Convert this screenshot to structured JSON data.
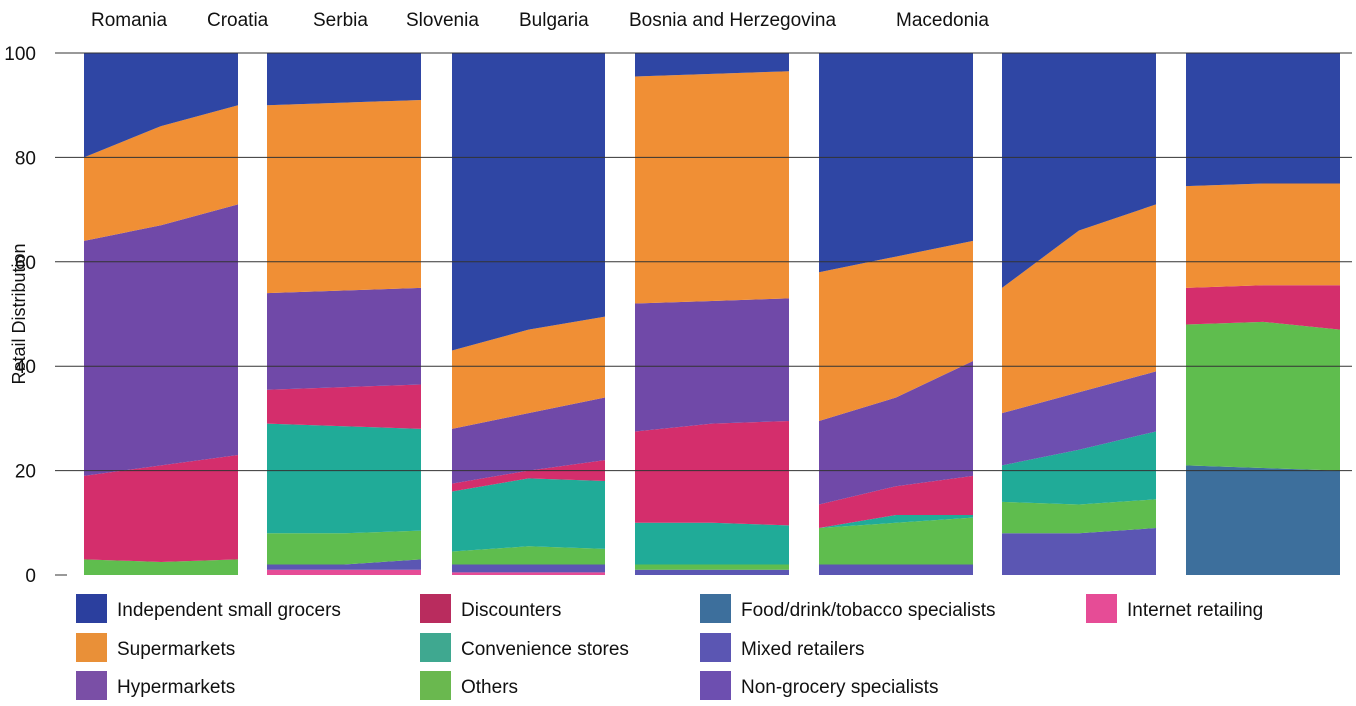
{
  "chart_data": {
    "type": "area",
    "ylabel": "Retail Distribution",
    "ylim": [
      0,
      100
    ],
    "yticks": [
      0,
      20,
      40,
      60,
      80,
      100
    ],
    "grid": true,
    "legend_position": "bottom",
    "channels": [
      {
        "name": "Food/drink/tobacco specialists",
        "color": "#3d6f9c"
      },
      {
        "name": "Internet retailing",
        "color": "#e64c96"
      },
      {
        "name": "Mixed retailers",
        "color": "#5b56b3"
      },
      {
        "name": "Others",
        "color": "#5fbd4e"
      },
      {
        "name": "Convenience stores",
        "color": "#20ab98"
      },
      {
        "name": "Discounters",
        "color": "#d42e6c"
      },
      {
        "name": "Non-grocery specialists",
        "color": "#6d4fb0"
      },
      {
        "name": "Hypermarkets",
        "color": "#7049a8"
      },
      {
        "name": "Supermarkets",
        "color": "#f08f35"
      },
      {
        "name": "Independent small grocers",
        "color": "#2f46a4"
      }
    ],
    "countries": [
      {
        "name": "Romania",
        "boundaries": {
          "Food/drink/tobacco specialists": [
            0,
            0,
            0
          ],
          "Internet retailing": [
            0,
            0,
            0
          ],
          "Mixed retailers": [
            0,
            0,
            0
          ],
          "Others": [
            3,
            2.5,
            3
          ],
          "Convenience stores": [
            3,
            2.5,
            3
          ],
          "Discounters": [
            19,
            21,
            23
          ],
          "Non-grocery specialists": [
            19,
            21,
            23
          ],
          "Hypermarkets": [
            64,
            67,
            71
          ],
          "Supermarkets": [
            80,
            86,
            90
          ],
          "Independent small grocers": [
            100,
            100,
            100
          ]
        }
      },
      {
        "name": "Croatia",
        "boundaries": {
          "Food/drink/tobacco specialists": [
            0,
            0,
            0
          ],
          "Internet retailing": [
            1,
            1,
            1
          ],
          "Mixed retailers": [
            2,
            2,
            3
          ],
          "Others": [
            8,
            8,
            8.5
          ],
          "Convenience stores": [
            29,
            28.5,
            28
          ],
          "Discounters": [
            35.5,
            36,
            36.5
          ],
          "Non-grocery specialists": [
            35.5,
            36,
            36.5
          ],
          "Hypermarkets": [
            54,
            54.5,
            55
          ],
          "Supermarkets": [
            90,
            90.5,
            91
          ],
          "Independent small grocers": [
            100,
            100,
            100
          ]
        }
      },
      {
        "name": "Serbia",
        "boundaries": {
          "Food/drink/tobacco specialists": [
            0,
            0,
            0
          ],
          "Internet retailing": [
            0.5,
            0.5,
            0.5
          ],
          "Mixed retailers": [
            2,
            2,
            2
          ],
          "Others": [
            4.5,
            5.5,
            5
          ],
          "Convenience stores": [
            16,
            18.5,
            18
          ],
          "Discounters": [
            17.5,
            20,
            22
          ],
          "Non-grocery specialists": [
            17.5,
            20,
            22
          ],
          "Hypermarkets": [
            28,
            31,
            34
          ],
          "Supermarkets": [
            43,
            47,
            49.5
          ],
          "Independent small grocers": [
            100,
            100,
            100
          ]
        }
      },
      {
        "name": "Slovenia",
        "boundaries": {
          "Food/drink/tobacco specialists": [
            0,
            0,
            0
          ],
          "Internet retailing": [
            0,
            0,
            0
          ],
          "Mixed retailers": [
            1,
            1,
            1
          ],
          "Others": [
            2,
            2,
            2
          ],
          "Convenience stores": [
            10,
            10,
            9.5
          ],
          "Discounters": [
            27.5,
            29,
            29.5
          ],
          "Non-grocery specialists": [
            27.5,
            29,
            29.5
          ],
          "Hypermarkets": [
            52,
            52.5,
            53
          ],
          "Supermarkets": [
            95.5,
            96,
            96.5
          ],
          "Independent small grocers": [
            100,
            100,
            100
          ]
        }
      },
      {
        "name": "Bulgaria",
        "boundaries": {
          "Food/drink/tobacco specialists": [
            0,
            0,
            0
          ],
          "Internet retailing": [
            0,
            0,
            0
          ],
          "Mixed retailers": [
            2,
            2,
            2
          ],
          "Others": [
            9,
            10,
            11
          ],
          "Convenience stores": [
            9,
            11.5,
            11.5
          ],
          "Discounters": [
            13.5,
            17,
            19
          ],
          "Non-grocery specialists": [
            13.5,
            17,
            19
          ],
          "Hypermarkets": [
            29.5,
            34,
            41
          ],
          "Supermarkets": [
            58,
            61,
            64
          ],
          "Independent small grocers": [
            100,
            100,
            100
          ]
        }
      },
      {
        "name": "Bosnia and Herzegovina",
        "boundaries": {
          "Food/drink/tobacco specialists": [
            0,
            0,
            0
          ],
          "Internet retailing": [
            0,
            0,
            0
          ],
          "Mixed retailers": [
            8,
            8,
            9
          ],
          "Others": [
            14,
            13.5,
            14.5
          ],
          "Convenience stores": [
            21,
            24,
            27.5
          ],
          "Discounters": [
            21,
            24,
            27.5
          ],
          "Non-grocery specialists": [
            31,
            35,
            39
          ],
          "Hypermarkets": [
            31,
            35,
            39
          ],
          "Supermarkets": [
            55,
            66,
            71
          ],
          "Independent small grocers": [
            100,
            100,
            100
          ]
        }
      },
      {
        "name": "Macedonia",
        "boundaries": {
          "Food/drink/tobacco specialists": [
            21,
            20.5,
            20
          ],
          "Internet retailing": [
            21,
            20.5,
            20
          ],
          "Mixed retailers": [
            21,
            20.5,
            20
          ],
          "Others": [
            48,
            48.5,
            47
          ],
          "Convenience stores": [
            48,
            48.5,
            47
          ],
          "Discounters": [
            55,
            55.5,
            55.5
          ],
          "Non-grocery specialists": [
            55,
            55.5,
            55.5
          ],
          "Hypermarkets": [
            55,
            55.5,
            55.5
          ],
          "Supermarkets": [
            74.5,
            75,
            75
          ],
          "Independent small grocers": [
            100,
            100,
            100
          ]
        }
      }
    ],
    "legend": [
      {
        "label": "Independent small grocers",
        "color": "#2b3f9e"
      },
      {
        "label": "Discounters",
        "color": "#b92c5e"
      },
      {
        "label": "Food/drink/tobacco specialists",
        "color": "#3d6f9c"
      },
      {
        "label": "Internet retailing",
        "color": "#e64c96"
      },
      {
        "label": "Supermarkets",
        "color": "#e99038"
      },
      {
        "label": "Convenience stores",
        "color": "#3fa890"
      },
      {
        "label": "Mixed retailers",
        "color": "#5b56b3"
      },
      {
        "label": "Hypermarkets",
        "color": "#7a4fa6"
      },
      {
        "label": "Others",
        "color": "#6ab84f"
      },
      {
        "label": "Non-grocery specialists",
        "color": "#6d4fb0"
      }
    ]
  }
}
